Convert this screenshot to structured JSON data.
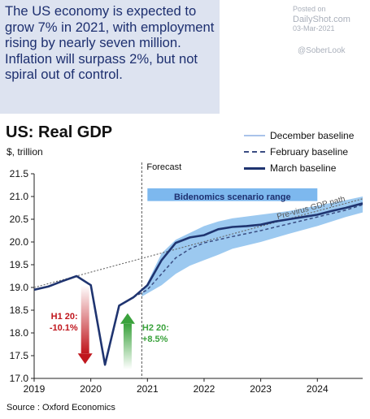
{
  "headline": "The US economy is expected to grow 7% in 2021, with employment rising by nearly seven million. Inflation will surpass 2%, but not spiral out of control.",
  "posted": {
    "label": "Posted on",
    "site": "DailyShot.com",
    "date": "03-Mar-2021",
    "handle": "@SoberLook"
  },
  "chart_data": {
    "type": "line",
    "title": "US: Real GDP",
    "ylabel": "$, trillion",
    "ylim": [
      17.0,
      21.5
    ],
    "yticks": [
      17.0,
      17.5,
      18.0,
      18.5,
      19.0,
      19.5,
      20.0,
      20.5,
      21.0,
      21.5
    ],
    "xlim": [
      2019.0,
      2024.8
    ],
    "xticks": [
      2019,
      2020,
      2021,
      2022,
      2023,
      2024
    ],
    "legend": [
      "December baseline",
      "February baseline",
      "March baseline"
    ],
    "legend_position": "top-right",
    "forecast_label": "Forecast",
    "forecast_start": 2020.9,
    "scenario_label": "Bidenomics scenario range",
    "pre_virus_label": "Pre-virus GDP path",
    "source": "Source : Oxford Economics",
    "annotations": [
      {
        "text_lines": [
          "H1 20:",
          "-10.1%"
        ],
        "color": "#c0161d"
      },
      {
        "text_lines": [
          "H2 20:",
          "+8.5%"
        ],
        "color": "#3aa23c"
      }
    ],
    "series": [
      {
        "name": "March baseline",
        "x": [
          2019.0,
          2019.25,
          2019.5,
          2019.75,
          2020.0,
          2020.25,
          2020.5,
          2020.75,
          2021.0,
          2021.25,
          2021.5,
          2021.75,
          2022.0,
          2022.25,
          2022.5,
          2022.75,
          2023.0,
          2023.25,
          2023.5,
          2023.75,
          2024.0,
          2024.25,
          2024.5,
          2024.8
        ],
        "y": [
          18.95,
          19.02,
          19.14,
          19.25,
          19.05,
          17.3,
          18.6,
          18.78,
          19.05,
          19.6,
          19.98,
          20.1,
          20.15,
          20.28,
          20.33,
          20.35,
          20.38,
          20.45,
          20.5,
          20.55,
          20.6,
          20.68,
          20.75,
          20.85
        ]
      },
      {
        "name": "February baseline",
        "x": [
          2020.75,
          2021.0,
          2021.25,
          2021.5,
          2021.75,
          2022.0,
          2022.5,
          2023.0,
          2023.5,
          2024.0,
          2024.5,
          2024.8
        ],
        "y": [
          18.78,
          18.95,
          19.3,
          19.65,
          19.85,
          19.98,
          20.12,
          20.25,
          20.4,
          20.55,
          20.7,
          20.82
        ]
      },
      {
        "name": "Pre-virus GDP path",
        "x": [
          2019.0,
          2024.8
        ],
        "y": [
          19.0,
          20.95
        ]
      }
    ],
    "scenario_band": {
      "x": [
        2020.9,
        2021.25,
        2021.5,
        2021.75,
        2022.0,
        2022.25,
        2022.5,
        2023.0,
        2023.5,
        2024.0,
        2024.5,
        2024.8
      ],
      "upper": [
        18.85,
        19.75,
        20.05,
        20.2,
        20.35,
        20.45,
        20.52,
        20.6,
        20.68,
        20.8,
        20.92,
        21.0
      ],
      "lower": [
        18.8,
        19.05,
        19.3,
        19.48,
        19.6,
        19.72,
        19.85,
        20.0,
        20.18,
        20.35,
        20.55,
        20.65
      ]
    }
  }
}
